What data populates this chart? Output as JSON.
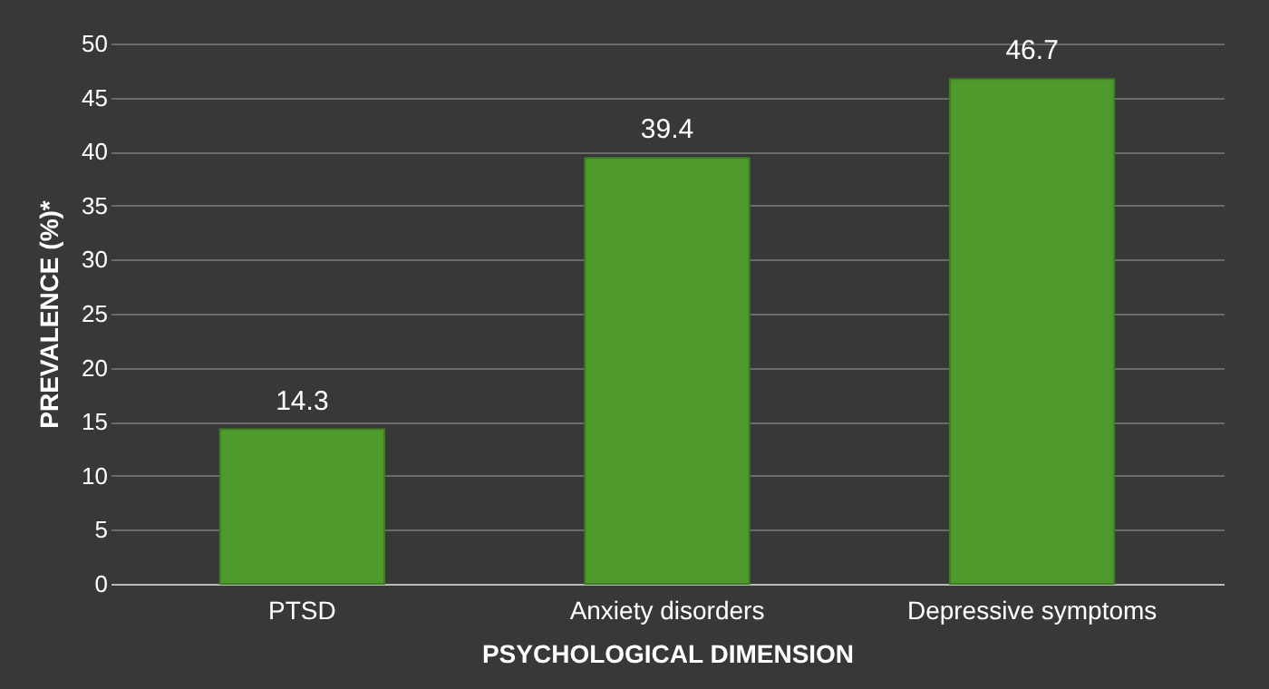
{
  "chart_data": {
    "type": "bar",
    "xlabel": "PSYCHOLOGICAL DIMENSION",
    "ylabel": "PREVALENCE (%)*",
    "categories": [
      "PTSD",
      "Anxiety disorders",
      "Depressive symptoms"
    ],
    "values": [
      14.3,
      39.4,
      46.7
    ],
    "color": "#4e9a2c",
    "ylim": [
      0,
      50
    ],
    "yticks": [
      0,
      5,
      10,
      15,
      20,
      25,
      30,
      35,
      40,
      45,
      50
    ],
    "grid": "y",
    "data_labels": true
  }
}
